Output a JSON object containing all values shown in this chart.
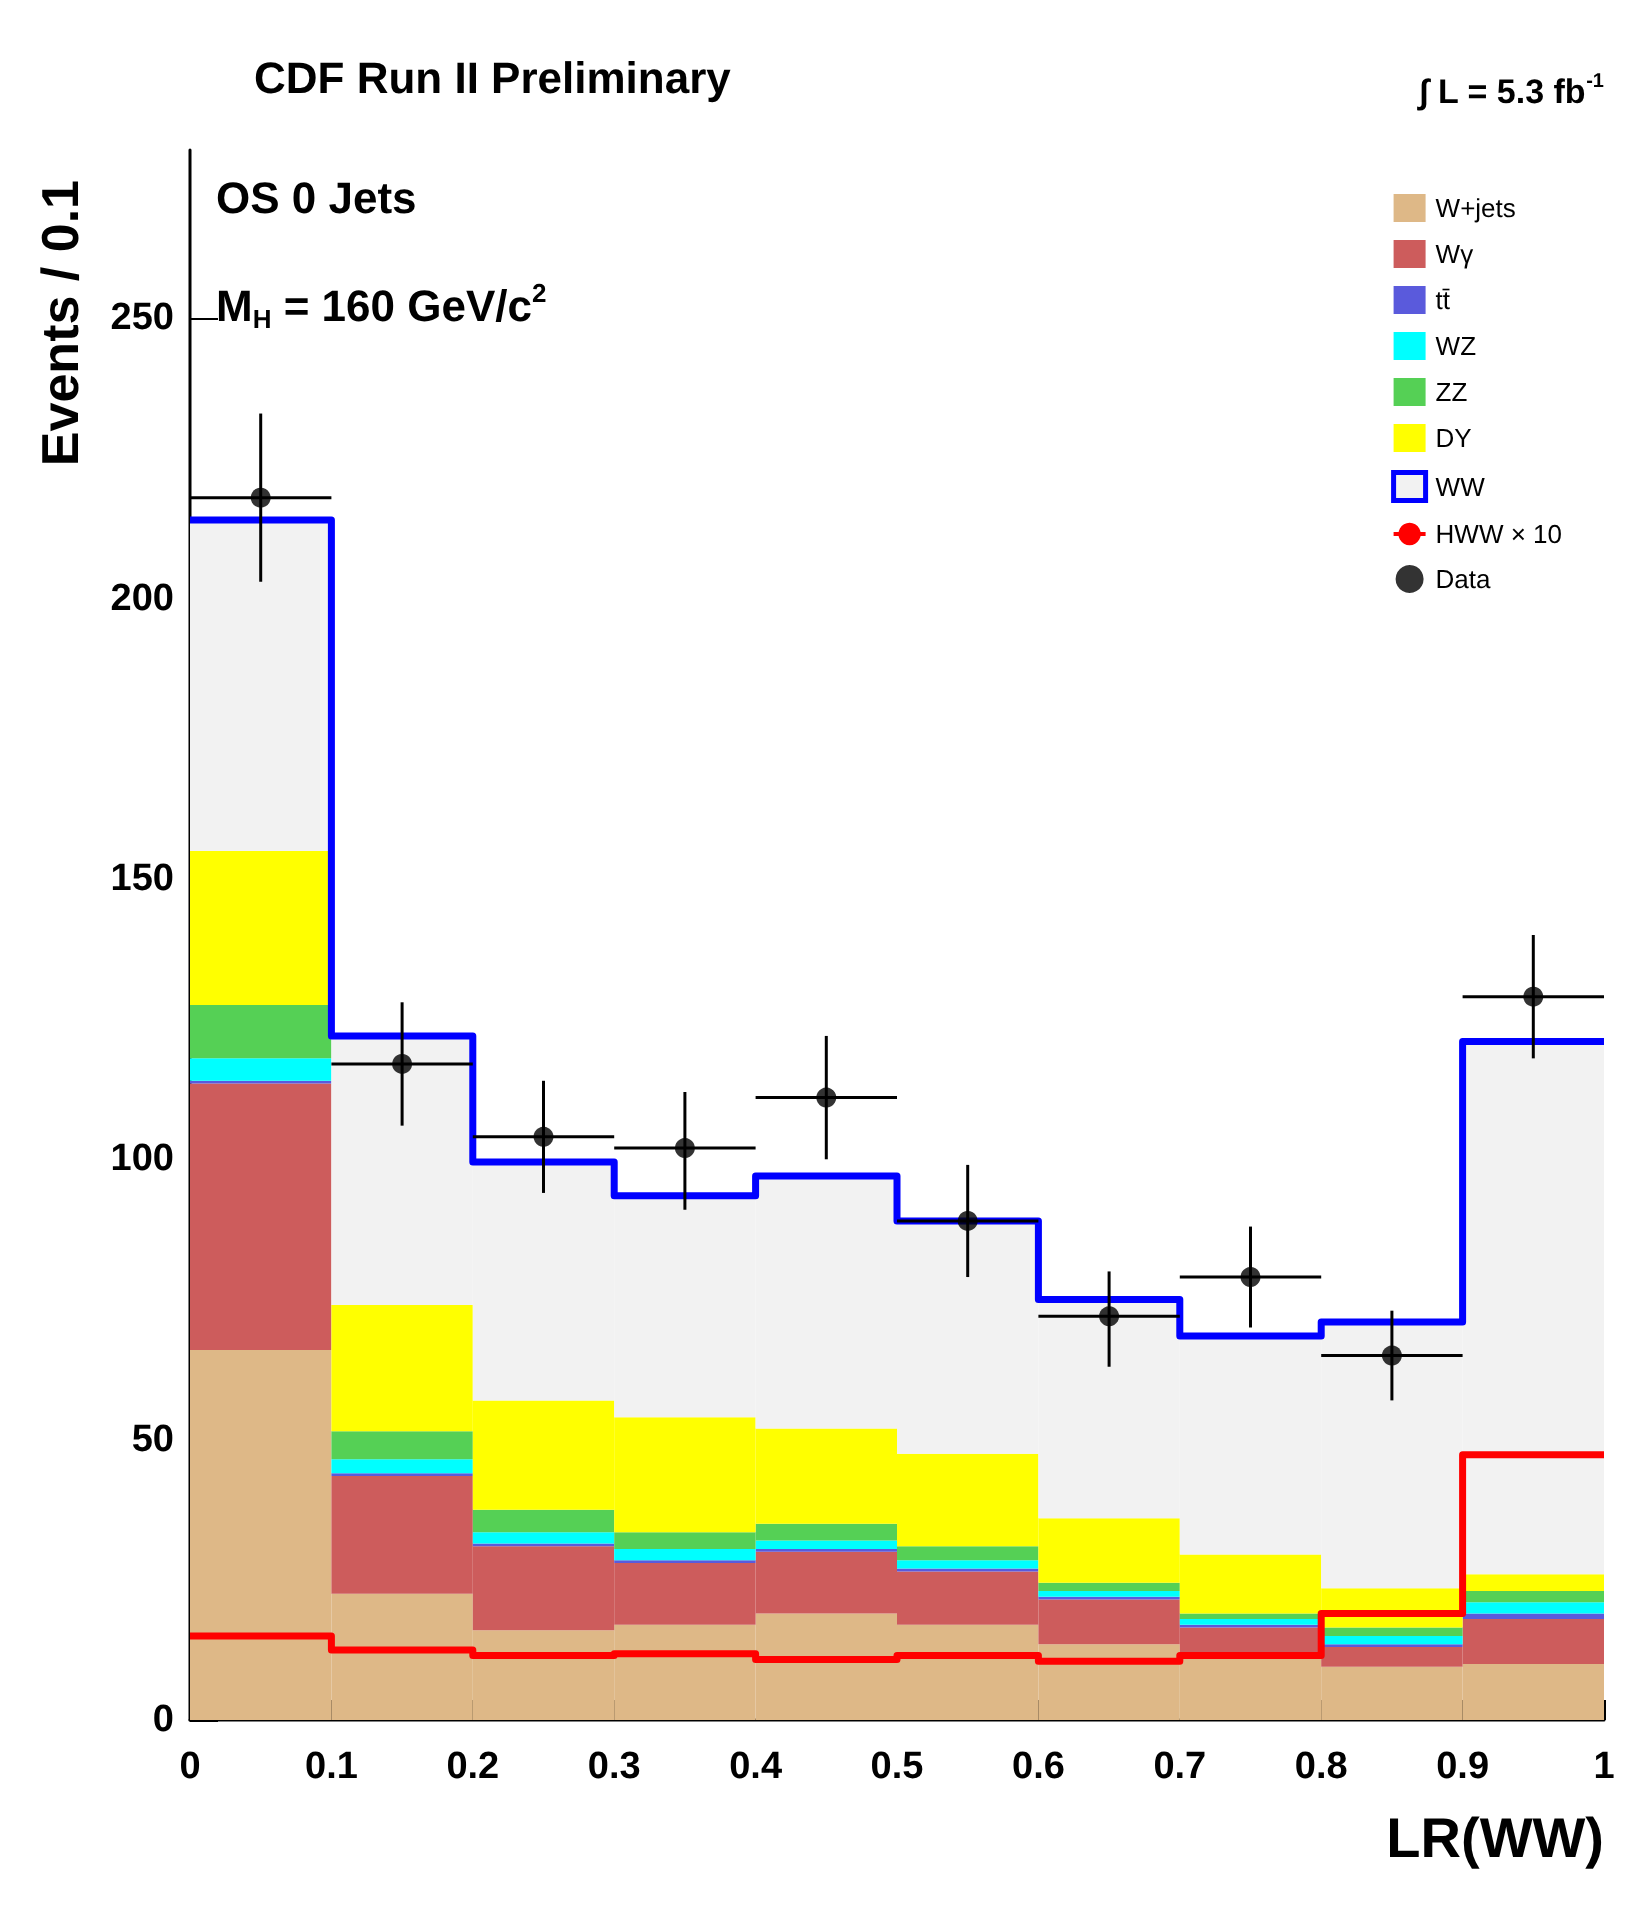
{
  "chart_data": {
    "type": "bar",
    "title": "CDF Run II Preliminary",
    "annotations": [
      "∫ L = 5.3 fb$^{-1}$",
      "OS 0 Jets",
      "M$_{H}$ = 160 GeV/c$^{2}$"
    ],
    "xlabel": "LR(WW)",
    "ylabel": "Events / 0.1",
    "x": [
      0.05,
      0.15,
      0.25,
      0.35,
      0.45,
      0.55,
      0.65,
      0.75,
      0.85,
      0.95
    ],
    "stacked": true,
    "series": [
      {
        "name": "W+jets",
        "color": "#deb887",
        "values": [
          66,
          22.5,
          16,
          17,
          19,
          17,
          13.5,
          11,
          9.5,
          10
        ]
      },
      {
        "name": "Wγ",
        "color": "#cd5c5c",
        "values": [
          47.5,
          21,
          15,
          11,
          11,
          9.5,
          8,
          5.5,
          3.5,
          8
        ]
      },
      {
        "name": "tt̄",
        "color": "#5a5adc",
        "values": [
          0.5,
          0.5,
          0.5,
          0.5,
          0.5,
          0.5,
          0.5,
          0.5,
          0.5,
          1
        ]
      },
      {
        "name": "WZ",
        "color": "#00ffff",
        "values": [
          4,
          2.5,
          2,
          2,
          1.5,
          1.5,
          1,
          1,
          1.5,
          2
        ]
      },
      {
        "name": "ZZ",
        "color": "#55d055",
        "values": [
          9.5,
          5,
          4,
          3,
          3,
          2.5,
          1.5,
          1,
          1.5,
          2
        ]
      },
      {
        "name": "DY",
        "color": "#ffff00",
        "values": [
          27.5,
          22.5,
          19.5,
          20.5,
          17,
          16.5,
          11.5,
          10.5,
          7,
          3
        ]
      },
      {
        "color": "#f2f2f2",
        "values": [
          59,
          48,
          42.5,
          39.5,
          45,
          41.5,
          39,
          39,
          47.5,
          95
        ]
      },
      {
        "name": "WW",
        "type": "step",
        "color": "#0000ff",
        "x": [
          0,
          0.1,
          0.2,
          0.3,
          0.4,
          0.5,
          0.6,
          0.7,
          0.8,
          0.9,
          1
        ],
        "values": [
          214,
          122,
          99.5,
          93.5,
          97,
          89,
          75,
          68.5,
          71,
          121,
          121
        ]
      },
      {
        "name": "HWW × 10",
        "type": "step",
        "color": "#ff0000",
        "x": [
          0,
          0.1,
          0.2,
          0.3,
          0.4,
          0.5,
          0.6,
          0.7,
          0.8,
          0.9,
          1
        ],
        "values": [
          15,
          12.5,
          11.5,
          11.8,
          10.8,
          11.5,
          10.5,
          11.5,
          19,
          47.3,
          47.3
        ]
      },
      {
        "name": "Data",
        "type": "scatter",
        "marker": "circle",
        "color": "#000000",
        "x": [
          0.05,
          0.15,
          0.25,
          0.35,
          0.45,
          0.55,
          0.65,
          0.75,
          0.85,
          0.95
        ],
        "values": [
          218,
          117,
          104,
          102,
          111,
          89,
          72,
          79,
          65,
          129
        ],
        "errors": [
          [
            203,
            233
          ],
          [
            106,
            128
          ],
          [
            94,
            114
          ],
          [
            91,
            112
          ],
          [
            100,
            122
          ],
          [
            79,
            99
          ],
          [
            63,
            80
          ],
          [
            70,
            88
          ],
          [
            57,
            73
          ],
          [
            118,
            140
          ]
        ],
        "xerrors": [
          0.05,
          0.05,
          0.05,
          0.05,
          0.05,
          0.05,
          0.05,
          0.05,
          0.05,
          0.05
        ]
      }
    ],
    "xlim": [
      0,
      1
    ],
    "xticks": [
      0,
      0.1,
      0.2,
      0.3,
      0.4,
      0.5,
      0.6,
      0.7,
      0.8,
      0.9,
      1
    ],
    "ylim": [
      0,
      280
    ],
    "yticks": [
      0,
      50,
      100,
      150,
      200,
      250
    ],
    "legend": "top right"
  }
}
